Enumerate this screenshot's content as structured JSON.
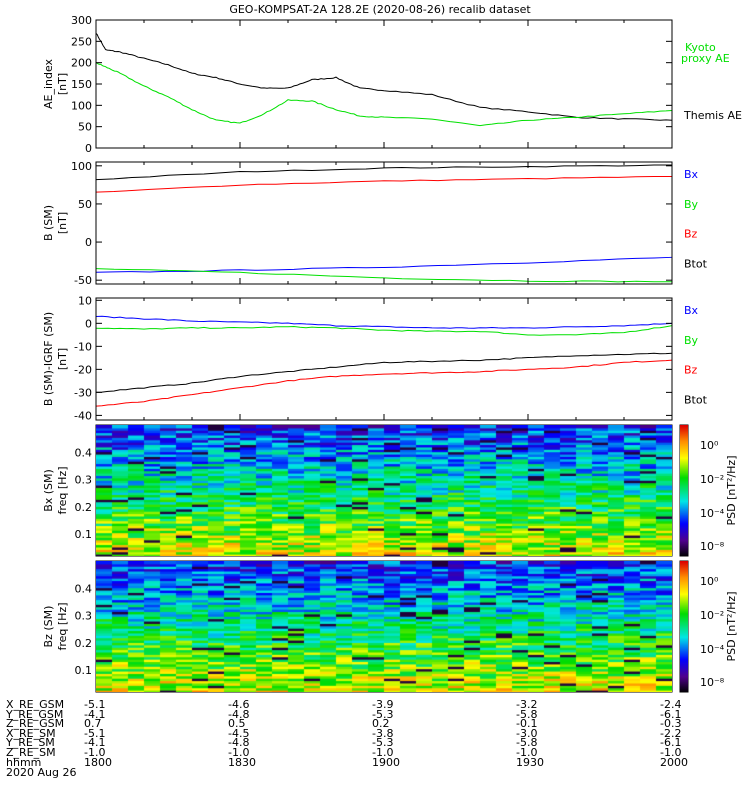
{
  "title": "GEO-KOMPSAT-2A 128.2E (2020-08-26) recalib dataset",
  "colors": {
    "black": "#000000",
    "red": "#ff0000",
    "green": "#00e000",
    "blue": "#0000ff"
  },
  "chart_data": [
    {
      "type": "line",
      "ylabel": "AE_index",
      "yunit": "[nT]",
      "ylim": [
        0,
        300
      ],
      "yticks": [
        0,
        50,
        100,
        150,
        200,
        250,
        300
      ],
      "x_minutes": [
        0,
        2,
        5,
        10,
        15,
        20,
        25,
        30,
        35,
        40,
        45,
        50,
        55,
        60,
        70,
        80,
        90,
        100,
        110,
        120
      ],
      "series": [
        {
          "name": "Themis AE",
          "color": "#000000",
          "values": [
            270,
            230,
            225,
            210,
            195,
            175,
            165,
            150,
            140,
            140,
            160,
            165,
            140,
            135,
            125,
            95,
            85,
            72,
            68,
            65
          ]
        },
        {
          "name": "Kyoto proxy AE",
          "color": "#00e000",
          "values": [
            200,
            190,
            175,
            145,
            120,
            90,
            65,
            58,
            80,
            112,
            110,
            90,
            75,
            72,
            68,
            52,
            65,
            72,
            80,
            88
          ]
        }
      ]
    },
    {
      "type": "line",
      "ylabel": "B (SM)",
      "yunit": "[nT]",
      "ylim": [
        -55,
        105
      ],
      "yticks": [
        -50,
        0,
        50,
        100
      ],
      "x_minutes": [
        0,
        30,
        60,
        90,
        120
      ],
      "series": [
        {
          "name": "Btot",
          "color": "#000000",
          "values": [
            82,
            92,
            97,
            99,
            101
          ]
        },
        {
          "name": "Bz",
          "color": "#ff0000",
          "values": [
            65,
            75,
            80,
            83,
            86
          ]
        },
        {
          "name": "Bx",
          "color": "#0000ff",
          "values": [
            -40,
            -37,
            -33,
            -27,
            -20
          ]
        },
        {
          "name": "By",
          "color": "#00e000",
          "values": [
            -35,
            -40,
            -47,
            -51,
            -52
          ]
        }
      ],
      "legend": [
        "Bx",
        "By",
        "Bz",
        "Btot"
      ]
    },
    {
      "type": "line",
      "ylabel": "B (SM)-IGRF (SM)",
      "yunit": "[nT]",
      "ylim": [
        -42,
        11
      ],
      "yticks": [
        -40,
        -30,
        -20,
        -10,
        0,
        10
      ],
      "x_minutes": [
        0,
        10,
        20,
        30,
        40,
        50,
        60,
        70,
        80,
        90,
        100,
        110,
        120
      ],
      "series": [
        {
          "name": "Bx",
          "color": "#0000ff",
          "values": [
            3,
            2,
            1,
            0.5,
            0,
            -1,
            -1.5,
            -2,
            -2,
            -2,
            -1.5,
            -1,
            0
          ]
        },
        {
          "name": "By",
          "color": "#00e000",
          "values": [
            -2,
            -2.5,
            -2,
            -2,
            -1.5,
            -2,
            -3,
            -3.5,
            -3.5,
            -5,
            -5,
            -4,
            -1
          ]
        },
        {
          "name": "Btot",
          "color": "#000000",
          "values": [
            -30,
            -28,
            -26,
            -23,
            -21,
            -19,
            -17,
            -16.5,
            -16,
            -15,
            -14,
            -13.5,
            -13
          ]
        },
        {
          "name": "Bz",
          "color": "#ff0000",
          "values": [
            -36,
            -34,
            -31,
            -28,
            -25,
            -23,
            -22,
            -21.5,
            -21,
            -20,
            -19,
            -17,
            -16
          ]
        }
      ],
      "legend": [
        "Bx",
        "By",
        "Bz",
        "Btot"
      ]
    },
    {
      "type": "heatmap",
      "ylabel": "Bx (SM)",
      "yunit": "freq [Hz]",
      "ylim": [
        0.02,
        0.5
      ],
      "yticks": [
        0.1,
        0.2,
        0.3,
        0.4
      ],
      "cbar_label": "PSD [nT²/Hz]",
      "cbar_ticks": [
        "10⁰",
        "10⁻²",
        "10⁻⁴",
        "10⁻⁸"
      ]
    },
    {
      "type": "heatmap",
      "ylabel": "Bz (SM)",
      "yunit": "freq [Hz]",
      "ylim": [
        0.02,
        0.5
      ],
      "yticks": [
        0.1,
        0.2,
        0.3,
        0.4
      ],
      "cbar_label": "PSD [nT²/Hz]",
      "cbar_ticks": [
        "10⁰",
        "10⁻²",
        "10⁻⁴",
        "10⁻⁸"
      ]
    }
  ],
  "legend_ae": {
    "kyoto1": "Kyoto",
    "kyoto2": "proxy AE",
    "themis": "Themis AE"
  },
  "ephemeris": {
    "labels": [
      "X_RE_GSM",
      "Y_RE_GSM",
      "Z_RE_GSM",
      "X_RE_SM",
      "Y_RE_SM",
      "Z_RE_SM",
      "hhmm"
    ],
    "columns": [
      [
        "-5.1",
        "-4.1",
        "0.7",
        "-5.1",
        "-4.1",
        "-1.0",
        "1800"
      ],
      [
        "-4.6",
        "-4.8",
        "0.5",
        "-4.5",
        "-4.8",
        "-1.0",
        "1830"
      ],
      [
        "-3.9",
        "-5.3",
        "0.2",
        "-3.8",
        "-5.3",
        "-1.0",
        "1900"
      ],
      [
        "-3.2",
        "-5.8",
        "-0.1",
        "-3.0",
        "-5.8",
        "-1.0",
        "1930"
      ],
      [
        "-2.4",
        "-6.1",
        "-0.3",
        "-2.2",
        "-6.1",
        "-1.0",
        "2000"
      ]
    ],
    "date": "2020 Aug 26"
  }
}
